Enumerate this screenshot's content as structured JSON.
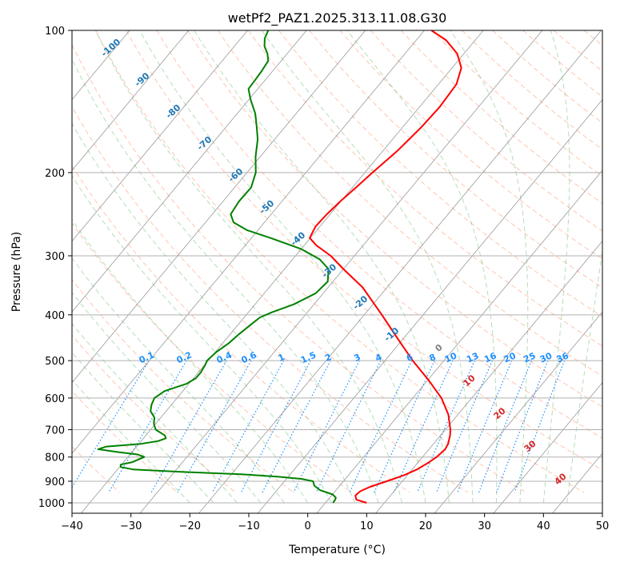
{
  "chart_data": {
    "type": "line",
    "title": "wetPf2_PAZ1.2025.313.11.08.G30",
    "xlabel": "Temperature (°C)",
    "ylabel": "Pressure (hPa)",
    "xlim": [
      -40,
      50
    ],
    "ylim_pressure": [
      1050,
      100
    ],
    "y_scale": "log",
    "skew": "skew-T",
    "grid": true,
    "x_ticks": [
      -40,
      -30,
      -20,
      -10,
      0,
      10,
      20,
      30,
      40,
      50
    ],
    "y_ticks": [
      100,
      200,
      300,
      400,
      500,
      600,
      700,
      800,
      900,
      1000
    ],
    "colors": {
      "temperature": "#ff0000",
      "dewpoint": "#008000",
      "dry_adiabat": "#ff7f50",
      "moist_adiabat": "#2ca02c",
      "mixing_ratio": "#1e90ff",
      "isotherm": "#808080",
      "isotherm_label_cold": "#1f77b4",
      "isotherm_label_warm": "#d62728",
      "zero_label": "#808080",
      "gridline": "#b0b0b0"
    },
    "series": [
      {
        "key": "temperature",
        "points": [
          [
            1000,
            10.0
          ],
          [
            985,
            7.8
          ],
          [
            965,
            7.0
          ],
          [
            945,
            7.2
          ],
          [
            925,
            8.2
          ],
          [
            900,
            10.2
          ],
          [
            875,
            12.2
          ],
          [
            850,
            13.6
          ],
          [
            820,
            14.6
          ],
          [
            800,
            15.1
          ],
          [
            770,
            15.4
          ],
          [
            750,
            15.1
          ],
          [
            720,
            14.2
          ],
          [
            700,
            13.4
          ],
          [
            650,
            10.8
          ],
          [
            600,
            7.2
          ],
          [
            550,
            2.4
          ],
          [
            500,
            -3.2
          ],
          [
            450,
            -8.9
          ],
          [
            400,
            -15.2
          ],
          [
            350,
            -22.5
          ],
          [
            320,
            -28.5
          ],
          [
            300,
            -32.6
          ],
          [
            285,
            -36.6
          ],
          [
            275,
            -38.8
          ],
          [
            260,
            -39.5
          ],
          [
            245,
            -39.4
          ],
          [
            230,
            -39.0
          ],
          [
            215,
            -38.4
          ],
          [
            200,
            -37.8
          ],
          [
            180,
            -36.8
          ],
          [
            160,
            -36.2
          ],
          [
            145,
            -36.1
          ],
          [
            130,
            -36.6
          ],
          [
            120,
            -38.2
          ],
          [
            112,
            -41.0
          ],
          [
            105,
            -44.8
          ],
          [
            100,
            -48.8
          ]
        ]
      },
      {
        "key": "dewpoint",
        "points": [
          [
            1000,
            4.3
          ],
          [
            985,
            4.2
          ],
          [
            975,
            4.0
          ],
          [
            960,
            3.0
          ],
          [
            940,
            0.2
          ],
          [
            920,
            -1.4
          ],
          [
            900,
            -2.3
          ],
          [
            890,
            -4.5
          ],
          [
            880,
            -9.0
          ],
          [
            870,
            -15.5
          ],
          [
            860,
            -26.0
          ],
          [
            850,
            -34.5
          ],
          [
            840,
            -37.0
          ],
          [
            830,
            -37.4
          ],
          [
            820,
            -35.8
          ],
          [
            800,
            -34.5
          ],
          [
            790,
            -36.0
          ],
          [
            780,
            -40.0
          ],
          [
            770,
            -43.5
          ],
          [
            760,
            -42.5
          ],
          [
            750,
            -37.0
          ],
          [
            740,
            -34.5
          ],
          [
            730,
            -33.6
          ],
          [
            720,
            -34.2
          ],
          [
            700,
            -36.6
          ],
          [
            680,
            -37.8
          ],
          [
            660,
            -38.6
          ],
          [
            640,
            -40.2
          ],
          [
            620,
            -41.0
          ],
          [
            600,
            -41.5
          ],
          [
            580,
            -40.8
          ],
          [
            560,
            -38.2
          ],
          [
            545,
            -37.4
          ],
          [
            530,
            -37.4
          ],
          [
            510,
            -37.8
          ],
          [
            500,
            -38.1
          ],
          [
            480,
            -37.8
          ],
          [
            460,
            -37.0
          ],
          [
            440,
            -36.6
          ],
          [
            420,
            -36.0
          ],
          [
            405,
            -35.5
          ],
          [
            395,
            -34.2
          ],
          [
            380,
            -31.7
          ],
          [
            360,
            -29.6
          ],
          [
            340,
            -29.3
          ],
          [
            320,
            -31.0
          ],
          [
            305,
            -34.0
          ],
          [
            290,
            -38.7
          ],
          [
            275,
            -45.5
          ],
          [
            265,
            -50.5
          ],
          [
            255,
            -54.0
          ],
          [
            245,
            -55.7
          ],
          [
            230,
            -56.2
          ],
          [
            215,
            -56.2
          ],
          [
            200,
            -57.6
          ],
          [
            185,
            -60.0
          ],
          [
            170,
            -62.2
          ],
          [
            160,
            -64.2
          ],
          [
            150,
            -66.4
          ],
          [
            140,
            -69.3
          ],
          [
            133,
            -71.2
          ],
          [
            127,
            -71.4
          ],
          [
            122,
            -71.6
          ],
          [
            116,
            -72.0
          ],
          [
            112,
            -73.2
          ],
          [
            108,
            -74.8
          ],
          [
            104,
            -75.9
          ],
          [
            100,
            -76.5
          ]
        ]
      }
    ],
    "isotherm_labels": [
      "-100",
      "-90",
      "-80",
      "-70",
      "-60",
      "-50",
      "-40",
      "-30",
      "-20",
      "-10",
      "0",
      "10",
      "20",
      "30",
      "40"
    ],
    "mixing_ratio_labels": [
      "0.1",
      "0.2",
      "0.4",
      "0.6",
      "1",
      "1.5",
      "2",
      "3",
      "4",
      "6",
      "8",
      "10",
      "13",
      "16",
      "20",
      "25",
      "30",
      "36"
    ]
  }
}
